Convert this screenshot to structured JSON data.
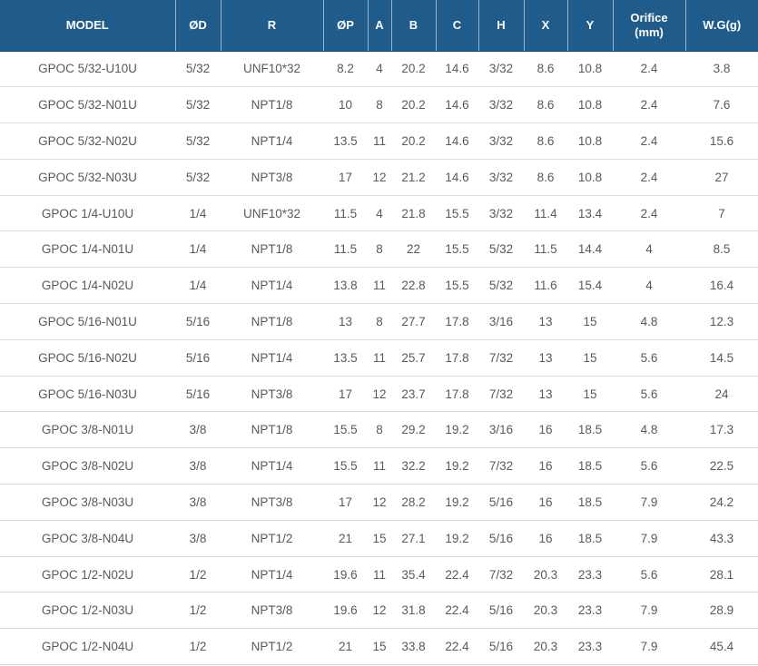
{
  "colors": {
    "header_bg": "#1f5c8c",
    "header_text": "#ffffff",
    "header_separator": "rgba(255,255,255,0.55)",
    "body_text": "#595959",
    "row_divider": "#dcdcdc"
  },
  "table": {
    "columns": [
      {
        "key": "model",
        "label": "MODEL"
      },
      {
        "key": "od",
        "label": "ØD"
      },
      {
        "key": "r",
        "label": "R"
      },
      {
        "key": "op",
        "label": "ØP"
      },
      {
        "key": "a",
        "label": "A"
      },
      {
        "key": "b",
        "label": "B"
      },
      {
        "key": "c",
        "label": "C"
      },
      {
        "key": "h",
        "label": "H"
      },
      {
        "key": "x",
        "label": "X"
      },
      {
        "key": "y",
        "label": "Y"
      },
      {
        "key": "orifice",
        "label": "Orifice (mm)"
      },
      {
        "key": "wg",
        "label": "W.G(g)"
      }
    ],
    "rows": [
      [
        "GPOC 5/32-U10U",
        "5/32",
        "UNF10*32",
        "8.2",
        "4",
        "20.2",
        "14.6",
        "3/32",
        "8.6",
        "10.8",
        "2.4",
        "3.8"
      ],
      [
        "GPOC 5/32-N01U",
        "5/32",
        "NPT1/8",
        "10",
        "8",
        "20.2",
        "14.6",
        "3/32",
        "8.6",
        "10.8",
        "2.4",
        "7.6"
      ],
      [
        "GPOC 5/32-N02U",
        "5/32",
        "NPT1/4",
        "13.5",
        "11",
        "20.2",
        "14.6",
        "3/32",
        "8.6",
        "10.8",
        "2.4",
        "15.6"
      ],
      [
        "GPOC 5/32-N03U",
        "5/32",
        "NPT3/8",
        "17",
        "12",
        "21.2",
        "14.6",
        "3/32",
        "8.6",
        "10.8",
        "2.4",
        "27"
      ],
      [
        "GPOC 1/4-U10U",
        "1/4",
        "UNF10*32",
        "11.5",
        "4",
        "21.8",
        "15.5",
        "3/32",
        "11.4",
        "13.4",
        "2.4",
        "7"
      ],
      [
        "GPOC 1/4-N01U",
        "1/4",
        "NPT1/8",
        "11.5",
        "8",
        "22",
        "15.5",
        "5/32",
        "11.5",
        "14.4",
        "4",
        "8.5"
      ],
      [
        "GPOC 1/4-N02U",
        "1/4",
        "NPT1/4",
        "13.8",
        "11",
        "22.8",
        "15.5",
        "5/32",
        "11.6",
        "15.4",
        "4",
        "16.4"
      ],
      [
        "GPOC 5/16-N01U",
        "5/16",
        "NPT1/8",
        "13",
        "8",
        "27.7",
        "17.8",
        "3/16",
        "13",
        "15",
        "4.8",
        "12.3"
      ],
      [
        "GPOC 5/16-N02U",
        "5/16",
        "NPT1/4",
        "13.5",
        "11",
        "25.7",
        "17.8",
        "7/32",
        "13",
        "15",
        "5.6",
        "14.5"
      ],
      [
        "GPOC 5/16-N03U",
        "5/16",
        "NPT3/8",
        "17",
        "12",
        "23.7",
        "17.8",
        "7/32",
        "13",
        "15",
        "5.6",
        "24"
      ],
      [
        "GPOC 3/8-N01U",
        "3/8",
        "NPT1/8",
        "15.5",
        "8",
        "29.2",
        "19.2",
        "3/16",
        "16",
        "18.5",
        "4.8",
        "17.3"
      ],
      [
        "GPOC 3/8-N02U",
        "3/8",
        "NPT1/4",
        "15.5",
        "11",
        "32.2",
        "19.2",
        "7/32",
        "16",
        "18.5",
        "5.6",
        "22.5"
      ],
      [
        "GPOC 3/8-N03U",
        "3/8",
        "NPT3/8",
        "17",
        "12",
        "28.2",
        "19.2",
        "5/16",
        "16",
        "18.5",
        "7.9",
        "24.2"
      ],
      [
        "GPOC 3/8-N04U",
        "3/8",
        "NPT1/2",
        "21",
        "15",
        "27.1",
        "19.2",
        "5/16",
        "16",
        "18.5",
        "7.9",
        "43.3"
      ],
      [
        "GPOC 1/2-N02U",
        "1/2",
        "NPT1/4",
        "19.6",
        "11",
        "35.4",
        "22.4",
        "7/32",
        "20.3",
        "23.3",
        "5.6",
        "28.1"
      ],
      [
        "GPOC 1/2-N03U",
        "1/2",
        "NPT3/8",
        "19.6",
        "12",
        "31.8",
        "22.4",
        "5/16",
        "20.3",
        "23.3",
        "7.9",
        "28.9"
      ],
      [
        "GPOC 1/2-N04U",
        "1/2",
        "NPT1/2",
        "21",
        "15",
        "33.8",
        "22.4",
        "5/16",
        "20.3",
        "23.3",
        "7.9",
        "45.4"
      ]
    ]
  }
}
